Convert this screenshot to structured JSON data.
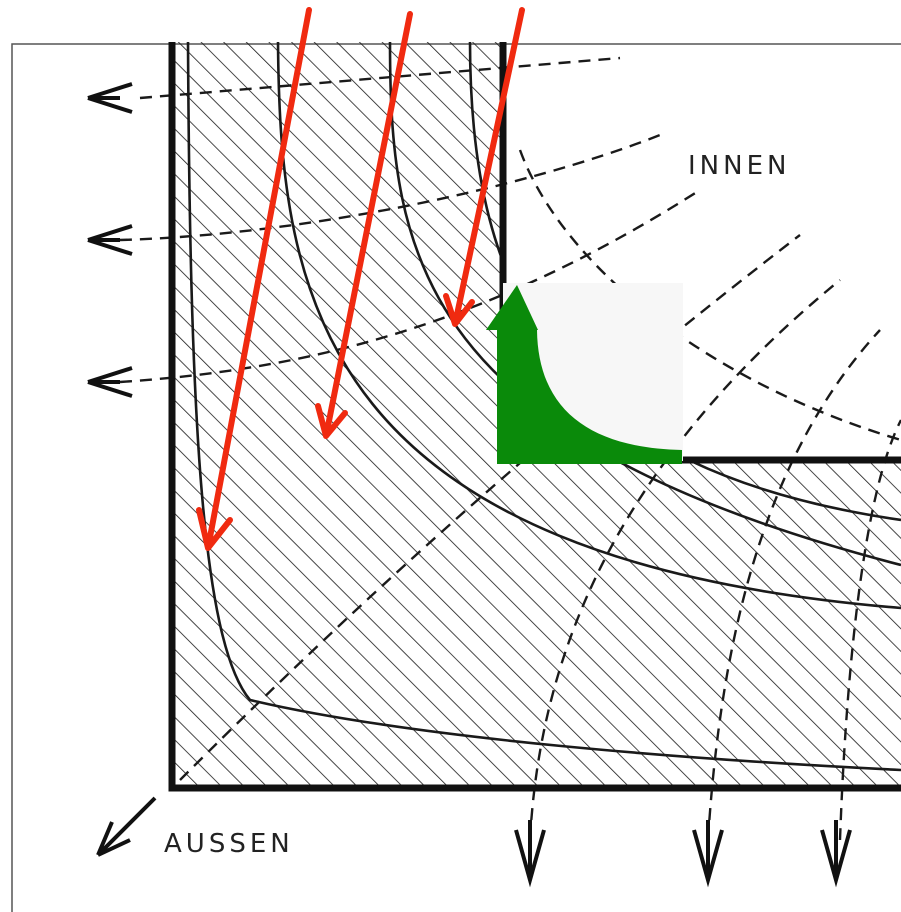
{
  "labels": {
    "inside": "INNEN",
    "outside": "AUSSEN"
  },
  "colors": {
    "ink": "#1a1a1a",
    "heat_flow_arrows": "#f02a10",
    "corner_marker": "#0a8a0a",
    "cover_patch": "#f7f7f7",
    "paper": "#ffffff"
  },
  "annotations": {
    "red_arrow_count": 3,
    "outward_arrow_count": 6
  }
}
